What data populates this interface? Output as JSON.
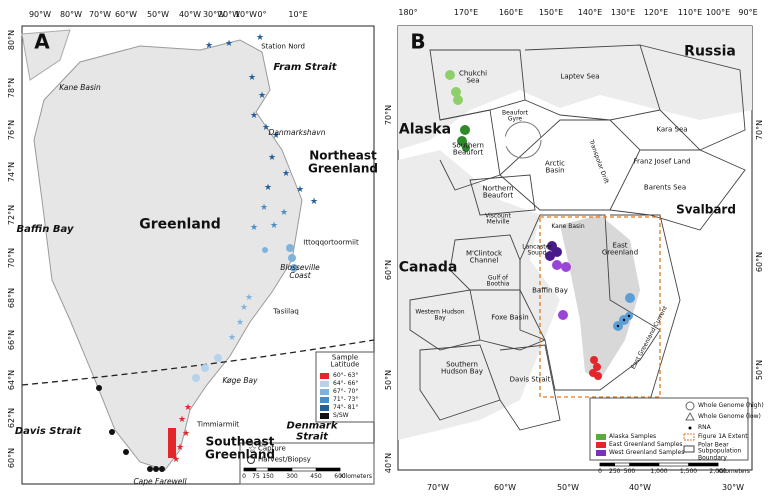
{
  "panel_a": {
    "label": "A",
    "longitudes": [
      "90°W",
      "80°W",
      "70°W",
      "60°W",
      "50°W",
      "40°W",
      "30°W",
      "20°W",
      "10°W",
      "0°",
      "10°E"
    ],
    "latitudes": [
      "80°N",
      "78°N",
      "76°N",
      "74°N",
      "72°N",
      "70°N",
      "68°N",
      "66°N",
      "64°N",
      "62°N",
      "60°N"
    ],
    "places": [
      "Station Nord",
      "Fram Strait",
      "Kane Basin",
      "Danmarkshavn",
      "Northeast Greenland",
      "Baffin Bay",
      "Greenland",
      "Ittoqqortoormiit",
      "Blosseville Coast",
      "Tasiilaq",
      "Køge Bay",
      "Davis Strait",
      "Timmiarmiit",
      "Southeast Greenland",
      "Denmark Strait",
      "Cape Farewell"
    ],
    "legend": {
      "title": "Sample Latitude",
      "entries": [
        {
          "label": "60°- 63°",
          "color": "#e3262b"
        },
        {
          "label": "64°- 66°",
          "color": "#b5d3ec"
        },
        {
          "label": "67°- 70°",
          "color": "#7fb3de"
        },
        {
          "label": "71°- 73°",
          "color": "#4a8cc6"
        },
        {
          "label": "74°- 81°",
          "color": "#255f99"
        },
        {
          "label": "S/SW",
          "color": "#111111"
        }
      ],
      "symbols": [
        "Capture",
        "Harvest/Biopsy"
      ]
    },
    "scale": {
      "ticks": [
        0,
        75,
        150,
        300,
        450,
        600
      ],
      "unit": "Kilometers"
    }
  },
  "panel_b": {
    "label": "B",
    "top_longitudes": [
      "180°",
      "170°E",
      "160°E",
      "150°E",
      "140°E",
      "130°E",
      "120°E",
      "110°E",
      "100°E",
      "90°E"
    ],
    "bottom_longitudes": [
      "70°W",
      "60°W",
      "50°W",
      "40°W",
      "30°W"
    ],
    "left_latitudes": [
      "70°N",
      "60°N",
      "50°N",
      "40°N"
    ],
    "right_latitudes": [
      "70°N",
      "60°N",
      "50°N"
    ],
    "places": [
      "Russia",
      "Chukchi Sea",
      "Laptev Sea",
      "Alaska",
      "Southern Beaufort",
      "Beaufort Gyre",
      "Kara Sea",
      "Arctic Basin",
      "Transpolar Drift",
      "Franz Josef Land",
      "Northern Beaufort",
      "Barents Sea",
      "Svalbard",
      "Viscount Melville",
      "Kane Basin",
      "East Greenland",
      "Canada",
      "M'Clintock Channel",
      "Lancaster Sound",
      "Gulf of Boothia",
      "Baffin Bay",
      "Western Hudson Bay",
      "Foxe Basin",
      "Southern Hudson Bay",
      "Davis Strait",
      "East Greenland Current"
    ],
    "legend": {
      "symbols": [
        "Whole Genome (high)",
        "Whole Genome (low)",
        "RNA"
      ],
      "samples": [
        {
          "label": "Alaska Samples",
          "color": "#5aaa3c"
        },
        {
          "label": "East Greenland Samples",
          "color": "#e3262b"
        },
        {
          "label": "West Greenland Samples",
          "color": "#7b2fbf"
        }
      ],
      "extent": "Figure 1A Extent",
      "boundary": "Polar Bear Subpopulation Boundary"
    },
    "scale": {
      "ticks": [
        0,
        250,
        500,
        {
          "value": 1000,
          "label": "1,000"
        },
        {
          "value": 1500,
          "label": "1,500"
        },
        {
          "value": 2000,
          "label": "2,000"
        }
      ],
      "unit": "Kilometers"
    }
  }
}
